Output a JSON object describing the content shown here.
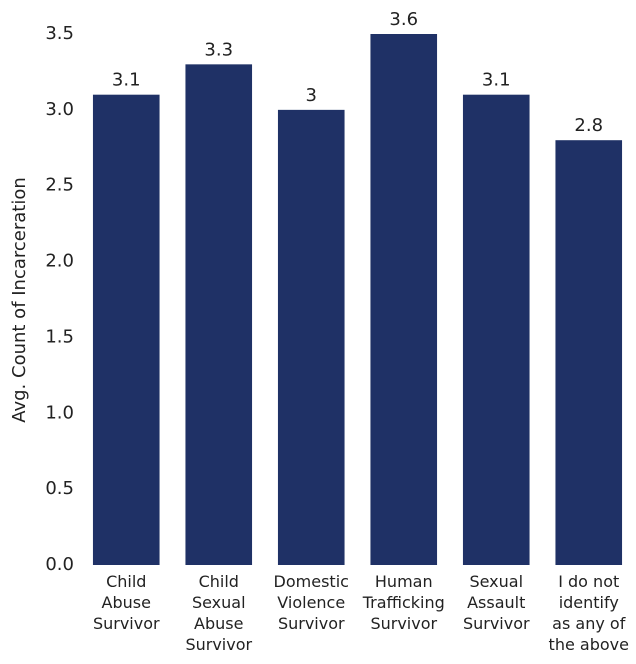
{
  "chart_data": {
    "type": "bar",
    "y_label": "Avg. Count of Incarceration",
    "categories": [
      "Child\nAbuse\nSurvivor",
      "Child\nSexual\nAbuse\nSurvivor",
      "Domestic\nViolence\nSurvivor",
      "Human\nTrafficking\nSurvivor",
      "Sexual\nAssault\nSurvivor",
      "I do not\nidentify\nas any of\nthe above"
    ],
    "values": [
      3.1,
      3.3,
      3,
      3.6,
      3.1,
      2.8
    ],
    "color": "#1f3166",
    "ylim": [
      0,
      3.5
    ],
    "yticks": [
      {
        "value": 0,
        "label": "0.0"
      },
      0.5,
      {
        "value": 1,
        "label": "1.0"
      },
      1.5,
      {
        "value": 2,
        "label": "2.0"
      },
      2.5,
      {
        "value": 3,
        "label": "3.0"
      },
      3.5
    ],
    "grid": false
  }
}
